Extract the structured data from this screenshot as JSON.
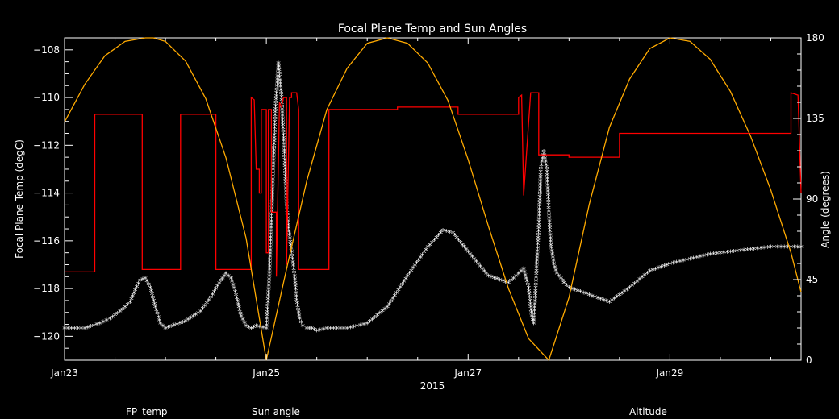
{
  "chart_data": {
    "type": "line",
    "title": "Focal Plane Temp and Sun Angles",
    "xlabel": "2015",
    "ylabel_left": "Focal Plane Temp (degC)",
    "ylabel_right": "Angle (degrees)",
    "x_unit": "days since Jan23 00:00",
    "xlim": [
      0,
      7.3
    ],
    "ylim_left": [
      -121,
      -107.5
    ],
    "ylim_right": [
      0,
      180
    ],
    "x_ticks": [
      {
        "value": 0,
        "label": "Jan23"
      },
      {
        "value": 2,
        "label": "Jan25"
      },
      {
        "value": 4,
        "label": "Jan27"
      },
      {
        "value": 6,
        "label": "Jan29"
      }
    ],
    "y_ticks_left": [
      {
        "value": -120,
        "label": "−120"
      },
      {
        "value": -118,
        "label": "−118"
      },
      {
        "value": -116,
        "label": "−116"
      },
      {
        "value": -114,
        "label": "−114"
      },
      {
        "value": -112,
        "label": "−112"
      },
      {
        "value": -110,
        "label": "−110"
      },
      {
        "value": -108,
        "label": "−108"
      }
    ],
    "y_ticks_right": [
      {
        "value": 0,
        "label": "0"
      },
      {
        "value": 45,
        "label": "45"
      },
      {
        "value": 90,
        "label": "90"
      },
      {
        "value": 135,
        "label": "135"
      },
      {
        "value": 180,
        "label": "180"
      }
    ],
    "grid": false,
    "series": [
      {
        "name": "FP_temp",
        "axis": "left",
        "color": "#ffffff",
        "style": "asterisk",
        "x": [
          0.0,
          0.2,
          0.35,
          0.45,
          0.55,
          0.65,
          0.7,
          0.75,
          0.8,
          0.85,
          0.9,
          0.95,
          1.0,
          1.2,
          1.35,
          1.45,
          1.55,
          1.6,
          1.65,
          1.7,
          1.75,
          1.8,
          1.85,
          1.9,
          2.0,
          2.03,
          2.06,
          2.09,
          2.12,
          2.15,
          2.18,
          2.2,
          2.22,
          2.25,
          2.28,
          2.3,
          2.33,
          2.36,
          2.4,
          2.45,
          2.5,
          2.6,
          2.8,
          3.0,
          3.2,
          3.4,
          3.6,
          3.75,
          3.85,
          4.0,
          4.2,
          4.4,
          4.55,
          4.6,
          4.63,
          4.65,
          4.67,
          4.68,
          4.7,
          4.72,
          4.75,
          4.78,
          4.8,
          4.82,
          4.85,
          4.88,
          4.92,
          4.95,
          5.0,
          5.2,
          5.4,
          5.6,
          5.8,
          6.0,
          6.2,
          6.4,
          6.6,
          6.8,
          7.0,
          7.2,
          7.3
        ],
        "y": [
          -119.7,
          -119.7,
          -119.5,
          -119.3,
          -119.0,
          -118.6,
          -118.1,
          -117.7,
          -117.6,
          -118.0,
          -118.8,
          -119.5,
          -119.7,
          -119.4,
          -119.0,
          -118.4,
          -117.7,
          -117.4,
          -117.6,
          -118.3,
          -119.2,
          -119.6,
          -119.7,
          -119.6,
          -119.7,
          -117.5,
          -114.0,
          -110.5,
          -108.6,
          -110.0,
          -112.5,
          -114.5,
          -115.5,
          -116.5,
          -117.5,
          -118.5,
          -119.3,
          -119.6,
          -119.7,
          -119.7,
          -119.8,
          -119.7,
          -119.7,
          -119.5,
          -118.8,
          -117.5,
          -116.3,
          -115.6,
          -115.7,
          -116.5,
          -117.5,
          -117.8,
          -117.2,
          -118.0,
          -119.2,
          -119.5,
          -118.0,
          -117.0,
          -115.5,
          -113.0,
          -112.3,
          -113.0,
          -114.8,
          -116.2,
          -117.0,
          -117.4,
          -117.6,
          -117.8,
          -118.0,
          -118.3,
          -118.6,
          -118.0,
          -117.3,
          -117.0,
          -116.8,
          -116.6,
          -116.5,
          -116.4,
          -116.3,
          -116.3,
          -116.3
        ]
      },
      {
        "name": "Sun angle",
        "axis": "left",
        "color": "#ff0000",
        "style": "line",
        "x": [
          0.0,
          0.3,
          0.3,
          0.77,
          0.77,
          1.15,
          1.15,
          1.5,
          1.5,
          1.85,
          1.85,
          1.88,
          1.9,
          1.93,
          1.93,
          1.95,
          1.95,
          2.0,
          2.0,
          2.02,
          2.02,
          2.05,
          2.05,
          2.1,
          2.1,
          2.13,
          2.15,
          2.17,
          2.2,
          2.2,
          2.23,
          2.25,
          2.25,
          2.3,
          2.32,
          2.32,
          2.62,
          2.62,
          3.3,
          3.3,
          3.9,
          3.9,
          4.5,
          4.5,
          4.53,
          4.55,
          4.55,
          4.62,
          4.62,
          4.7,
          4.7,
          5.0,
          5.0,
          5.5,
          5.5,
          5.7,
          5.7,
          7.2,
          7.2,
          7.27,
          7.3
        ],
        "y": [
          -117.3,
          -117.3,
          -110.7,
          -110.7,
          -117.2,
          -117.2,
          -110.7,
          -110.7,
          -117.2,
          -117.2,
          -110.0,
          -110.1,
          -113.0,
          -113.0,
          -114.0,
          -114.0,
          -110.5,
          -110.5,
          -116.5,
          -116.5,
          -110.5,
          -110.5,
          -114.8,
          -114.8,
          -117.5,
          -110.2,
          -110.4,
          -110.0,
          -110.0,
          -117.0,
          -110.0,
          -110.0,
          -109.8,
          -109.8,
          -110.5,
          -117.2,
          -117.2,
          -110.5,
          -110.5,
          -110.4,
          -110.4,
          -110.7,
          -110.7,
          -110.0,
          -109.9,
          -114.1,
          -114.1,
          -109.8,
          -109.8,
          -109.8,
          -112.4,
          -112.4,
          -112.5,
          -112.5,
          -111.5,
          -111.5,
          -111.5,
          -111.5,
          -109.8,
          -109.9,
          -114.0
        ]
      },
      {
        "name": "Altitude",
        "axis": "right",
        "color": "#ffaa00",
        "style": "line",
        "x": [
          0.0,
          0.2,
          0.4,
          0.6,
          0.8,
          0.88,
          1.0,
          1.2,
          1.4,
          1.6,
          1.8,
          2.0,
          2.2,
          2.4,
          2.6,
          2.8,
          3.0,
          3.2,
          3.4,
          3.6,
          3.8,
          4.0,
          4.2,
          4.4,
          4.6,
          4.8,
          5.0,
          5.2,
          5.4,
          5.6,
          5.8,
          6.0,
          6.2,
          6.4,
          6.6,
          6.8,
          7.0,
          7.2,
          7.3
        ],
        "y": [
          133,
          154,
          170,
          178,
          180,
          180,
          178,
          167,
          146,
          113,
          68,
          0,
          51,
          100,
          140,
          163,
          177,
          180,
          177,
          166,
          145,
          112,
          75,
          40,
          12,
          0,
          35,
          87,
          130,
          157,
          174,
          180,
          178,
          168,
          150,
          125,
          95,
          60,
          38
        ]
      }
    ],
    "legend": [
      {
        "label": "FP_temp",
        "color": "#ffffff"
      },
      {
        "label": "Sun angle",
        "color": "#ff0000"
      },
      {
        "label": "Altitude",
        "color": "#ffaa00"
      }
    ],
    "legend_placement": "bottom"
  }
}
